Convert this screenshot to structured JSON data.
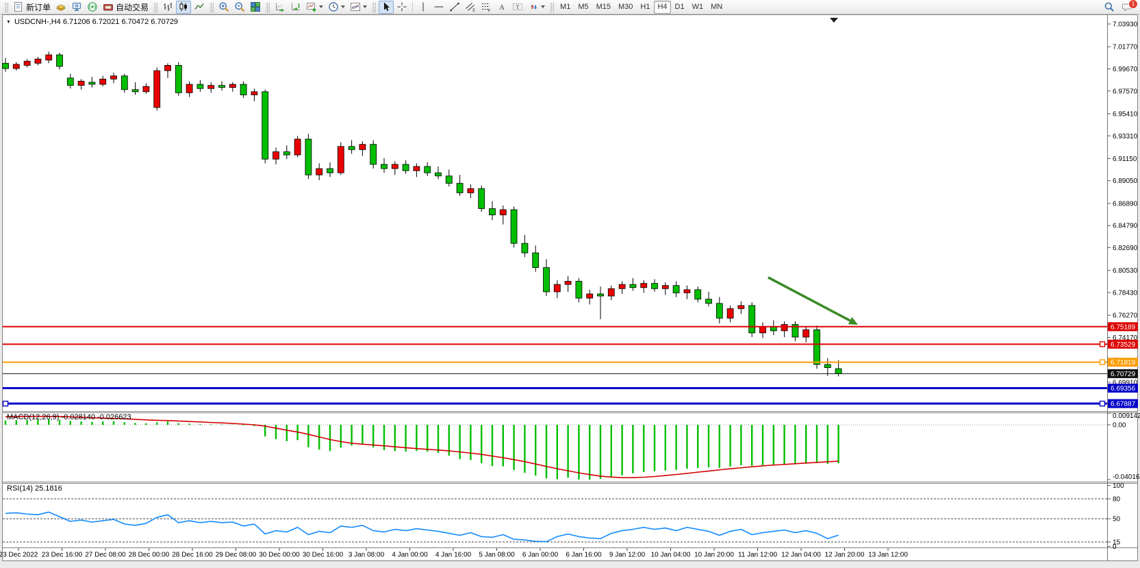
{
  "toolbar": {
    "new_order": "新订单",
    "auto_trading": "自动交易",
    "timeframes": [
      "M1",
      "M5",
      "M15",
      "M30",
      "H1",
      "H4",
      "D1",
      "W1",
      "MN"
    ],
    "active_timeframe": "H4",
    "notification_count": "1"
  },
  "chart": {
    "title": "USDCNH-,H4  6.71206 6.72021 6.70472 6.70729",
    "symbol": "USDCNH-",
    "period": "H4",
    "open": "6.71206",
    "high": "6.72021",
    "low": "6.70472",
    "close": "6.70729"
  },
  "indicators": {
    "macd_label": "MACD(12,26,9) -0.028140 -0.026623",
    "rsi_label": "RSI(14) 25.1816"
  },
  "chart_data": [
    {
      "type": "candlestick",
      "title": "USDCNH- H4",
      "up_color": "#EA0000",
      "down_color": "#00BE00",
      "outline_color": "#000000",
      "ylim": [
        6.668,
        7.048
      ],
      "y_ticks": [
        7.0393,
        7.0177,
        6.9967,
        6.9757,
        6.9541,
        6.9331,
        6.9115,
        6.8905,
        6.8689,
        6.8479,
        6.8269,
        6.8053,
        6.7843,
        6.7627,
        6.7417,
        6.6991
      ],
      "x_labels": [
        "23 Dec 2022",
        "23 Dec 16:00",
        "27 Dec 08:00",
        "28 Dec 00:00",
        "28 Dec 16:00",
        "29 Dec 08:00",
        "30 Dec 00:00",
        "30 Dec 16:00",
        "3 Jan 08:00",
        "4 Jan 00:00",
        "4 Jan 16:00",
        "5 Jan 08:00",
        "6 Jan 00:00",
        "6 Jan 16:00",
        "9 Jan 12:00",
        "10 Jan 04:00",
        "10 Jan 20:00",
        "11 Jan 12:00",
        "12 Jan 04:00",
        "12 Jan 20:00",
        "13 Jan 12:00"
      ],
      "ohlc": [
        [
          7.002,
          7.007,
          6.994,
          6.997
        ],
        [
          6.997,
          7.003,
          6.995,
          7.001
        ],
        [
          7.0,
          7.006,
          6.998,
          7.004
        ],
        [
          7.002,
          7.008,
          7.0,
          7.006
        ],
        [
          7.005,
          7.013,
          7.002,
          7.01
        ],
        [
          7.01,
          7.012,
          6.996,
          6.999
        ],
        [
          6.988,
          6.992,
          6.978,
          6.981
        ],
        [
          6.981,
          6.987,
          6.977,
          6.985
        ],
        [
          6.984,
          6.989,
          6.979,
          6.982
        ],
        [
          6.982,
          6.99,
          6.98,
          6.987
        ],
        [
          6.987,
          6.993,
          6.983,
          6.99
        ],
        [
          6.99,
          6.992,
          6.974,
          6.977
        ],
        [
          6.977,
          6.984,
          6.972,
          6.975
        ],
        [
          6.975,
          6.983,
          6.973,
          6.98
        ],
        [
          6.96,
          6.998,
          6.957,
          6.995
        ],
        [
          6.995,
          7.002,
          6.988,
          7.0
        ],
        [
          7.0,
          7.003,
          6.971,
          6.974
        ],
        [
          6.974,
          6.985,
          6.97,
          6.982
        ],
        [
          6.982,
          6.986,
          6.975,
          6.978
        ],
        [
          6.978,
          6.984,
          6.974,
          6.981
        ],
        [
          6.981,
          6.985,
          6.976,
          6.979
        ],
        [
          6.979,
          6.984,
          6.975,
          6.982
        ],
        [
          6.982,
          6.985,
          6.969,
          6.972
        ],
        [
          6.972,
          6.978,
          6.966,
          6.975
        ],
        [
          6.975,
          6.977,
          6.907,
          6.911
        ],
        [
          6.911,
          6.922,
          6.906,
          6.918
        ],
        [
          6.918,
          6.924,
          6.911,
          6.915
        ],
        [
          6.915,
          6.933,
          6.913,
          6.93
        ],
        [
          6.93,
          6.935,
          6.892,
          6.896
        ],
        [
          6.896,
          6.907,
          6.891,
          6.902
        ],
        [
          6.902,
          6.908,
          6.894,
          6.898
        ],
        [
          6.898,
          6.927,
          6.896,
          6.923
        ],
        [
          6.923,
          6.929,
          6.916,
          6.92
        ],
        [
          6.92,
          6.928,
          6.914,
          6.925
        ],
        [
          6.925,
          6.929,
          6.902,
          6.906
        ],
        [
          6.906,
          6.912,
          6.898,
          6.902
        ],
        [
          6.902,
          6.909,
          6.896,
          6.906
        ],
        [
          6.906,
          6.91,
          6.897,
          6.9
        ],
        [
          6.9,
          6.907,
          6.894,
          6.904
        ],
        [
          6.904,
          6.908,
          6.895,
          6.898
        ],
        [
          6.898,
          6.904,
          6.892,
          6.895
        ],
        [
          6.895,
          6.901,
          6.885,
          6.888
        ],
        [
          6.888,
          6.896,
          6.876,
          6.879
        ],
        [
          6.879,
          6.887,
          6.874,
          6.883
        ],
        [
          6.883,
          6.886,
          6.861,
          6.864
        ],
        [
          6.864,
          6.871,
          6.853,
          6.858
        ],
        [
          6.858,
          6.867,
          6.849,
          6.863
        ],
        [
          6.863,
          6.866,
          6.827,
          6.831
        ],
        [
          6.831,
          6.839,
          6.818,
          6.822
        ],
        [
          6.822,
          6.829,
          6.804,
          6.808
        ],
        [
          6.808,
          6.816,
          6.781,
          6.785
        ],
        [
          6.785,
          6.796,
          6.779,
          6.792
        ],
        [
          6.792,
          6.8,
          6.785,
          6.795
        ],
        [
          6.795,
          6.798,
          6.775,
          6.779
        ],
        [
          6.779,
          6.787,
          6.773,
          6.783
        ],
        [
          6.783,
          6.79,
          6.759,
          6.781
        ],
        [
          6.781,
          6.791,
          6.777,
          6.788
        ],
        [
          6.788,
          6.795,
          6.783,
          6.792
        ],
        [
          6.792,
          6.798,
          6.786,
          6.789
        ],
        [
          6.789,
          6.796,
          6.784,
          6.793
        ],
        [
          6.793,
          6.797,
          6.785,
          6.788
        ],
        [
          6.788,
          6.794,
          6.782,
          6.791
        ],
        [
          6.791,
          6.795,
          6.78,
          6.784
        ],
        [
          6.784,
          6.791,
          6.778,
          6.787
        ],
        [
          6.787,
          6.79,
          6.775,
          6.778
        ],
        [
          6.778,
          6.785,
          6.771,
          6.774
        ],
        [
          6.774,
          6.78,
          6.755,
          6.76
        ],
        [
          6.76,
          6.772,
          6.756,
          6.769
        ],
        [
          6.769,
          6.776,
          6.764,
          6.772
        ],
        [
          6.772,
          6.775,
          6.742,
          6.746
        ],
        [
          6.746,
          6.756,
          6.741,
          6.752
        ],
        [
          6.752,
          6.758,
          6.744,
          6.748
        ],
        [
          6.748,
          6.757,
          6.742,
          6.754
        ],
        [
          6.754,
          6.757,
          6.738,
          6.742
        ],
        [
          6.742,
          6.752,
          6.737,
          6.749
        ],
        [
          6.749,
          6.753,
          6.712,
          6.716
        ],
        [
          6.716,
          6.722,
          6.705,
          6.713
        ],
        [
          6.71206,
          6.72021,
          6.70472,
          6.70729
        ]
      ],
      "hlines": [
        {
          "price": 6.75189,
          "color": "#DE0000",
          "width": 2,
          "handles": []
        },
        {
          "price": 6.73529,
          "color": "#DE0000",
          "width": 2,
          "handles": [
            "right"
          ]
        },
        {
          "price": 6.71819,
          "color": "#FF9C00",
          "width": 2,
          "handles": [
            "right"
          ]
        },
        {
          "price": 6.70729,
          "color": "#101010",
          "width": 1,
          "handles": [],
          "role": "bid"
        },
        {
          "price": 6.69356,
          "color": "#0000C8",
          "width": 3,
          "handles": []
        },
        {
          "price": 6.67887,
          "color": "#0000C8",
          "width": 3,
          "handles": [
            "left",
            "right"
          ]
        }
      ],
      "arrow": {
        "from_index": 70.5,
        "from_price": 6.7987,
        "to_index": 78.8,
        "to_price": 6.7537,
        "color": "#3C8A28"
      },
      "current_price": 6.70729
    },
    {
      "type": "bar",
      "name": "MACD(12,26,9)",
      "current_macd": -0.02814,
      "current_signal": -0.026623,
      "histogram_color": "#00BE00",
      "signal_color": "#D40000",
      "y_axis_labels": [
        "0.009142",
        "0.00",
        "-0.040162"
      ],
      "y_axis_values": [
        0.009142,
        0,
        -0.040162
      ],
      "ylim": [
        -0.040162,
        0.009142
      ],
      "histogram": [
        0.0032,
        0.0034,
        0.0036,
        0.0039,
        0.0041,
        0.0037,
        0.0028,
        0.0024,
        0.0022,
        0.0025,
        0.0027,
        0.0019,
        0.0013,
        0.0011,
        0.0018,
        0.0024,
        0.0012,
        0.0009,
        0.0006,
        0.0004,
        0.0003,
        0.0002,
        -0.0004,
        -0.001,
        -0.0085,
        -0.0105,
        -0.012,
        -0.0112,
        -0.0165,
        -0.0182,
        -0.0192,
        -0.0168,
        -0.0152,
        -0.0142,
        -0.0166,
        -0.0186,
        -0.0192,
        -0.0196,
        -0.0192,
        -0.0196,
        -0.0206,
        -0.0226,
        -0.0252,
        -0.0258,
        -0.0282,
        -0.0302,
        -0.0304,
        -0.0332,
        -0.0352,
        -0.0372,
        -0.0392,
        -0.0398,
        -0.0388,
        -0.0401,
        -0.040162,
        -0.0396,
        -0.0382,
        -0.037,
        -0.0356,
        -0.0346,
        -0.034,
        -0.0336,
        -0.033,
        -0.0321,
        -0.0316,
        -0.0311,
        -0.0316,
        -0.0306,
        -0.0296,
        -0.0301,
        -0.0296,
        -0.0291,
        -0.0286,
        -0.0283,
        -0.0281,
        -0.0279,
        -0.0286,
        -0.02814
      ],
      "signal": [
        0.006,
        0.006,
        0.0061,
        0.0062,
        0.0062,
        0.0061,
        0.0058,
        0.0055,
        0.0052,
        0.0049,
        0.0047,
        0.0044,
        0.004,
        0.0036,
        0.0033,
        0.0031,
        0.0028,
        0.0024,
        0.0021,
        0.0017,
        0.0014,
        0.001,
        0.0005,
        0.0,
        -0.001,
        -0.0024,
        -0.004,
        -0.0053,
        -0.007,
        -0.0089,
        -0.0108,
        -0.0123,
        -0.0135,
        -0.0142,
        -0.0148,
        -0.0154,
        -0.0161,
        -0.0168,
        -0.0174,
        -0.018,
        -0.0185,
        -0.0191,
        -0.0199,
        -0.0207,
        -0.0217,
        -0.0229,
        -0.0241,
        -0.0255,
        -0.027,
        -0.0287,
        -0.0305,
        -0.0322,
        -0.0337,
        -0.0352,
        -0.0365,
        -0.0376,
        -0.0383,
        -0.0387,
        -0.0387,
        -0.0384,
        -0.0379,
        -0.0372,
        -0.0364,
        -0.0356,
        -0.0347,
        -0.0339,
        -0.033,
        -0.0322,
        -0.0315,
        -0.0308,
        -0.0301,
        -0.0295,
        -0.029,
        -0.0285,
        -0.028,
        -0.0276,
        -0.0271,
        -0.026623
      ]
    },
    {
      "type": "line",
      "name": "RSI(14)",
      "current": 25.1816,
      "color": "#1E90FF",
      "levels": [
        80,
        50,
        15
      ],
      "y_axis_labels": [
        "100",
        "80",
        "50",
        "15",
        "0"
      ],
      "ylim": [
        0,
        100
      ],
      "values": [
        58,
        59,
        57,
        56,
        60,
        53,
        46,
        48,
        45,
        47,
        49,
        42,
        40,
        43,
        52,
        56,
        44,
        47,
        44,
        46,
        44,
        45,
        39,
        42,
        27,
        32,
        30,
        37,
        26,
        31,
        29,
        39,
        37,
        40,
        32,
        30,
        34,
        32,
        35,
        33,
        31,
        28,
        25,
        29,
        23,
        22,
        26,
        19,
        18,
        16,
        15.5,
        23,
        27,
        23,
        21,
        20,
        28,
        32,
        34,
        37,
        34,
        36,
        32,
        37,
        34,
        31,
        25,
        31,
        34,
        26,
        29,
        31,
        33,
        29,
        32,
        28,
        20,
        25.18
      ]
    }
  ]
}
